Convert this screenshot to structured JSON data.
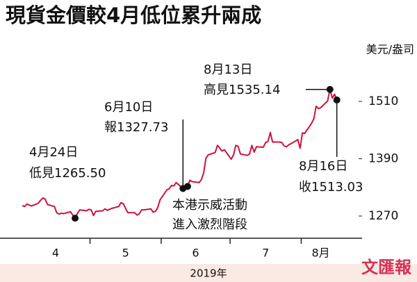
{
  "chart_data": {
    "type": "line",
    "title": "現貨金價較4月低位累升兩成",
    "y_unit": "美元/盎司",
    "x_label": "2019年",
    "watermark": "文匯報",
    "xlim": [
      -9.7,
      148
    ],
    "xticks": [
      {
        "value": 14.5,
        "label": "4"
      },
      {
        "value": 45,
        "label": "5"
      },
      {
        "value": 75.5,
        "label": "6"
      },
      {
        "value": 106,
        "label": "7"
      },
      {
        "value": 130,
        "label": "8月"
      }
    ],
    "month_bounds": [
      29.5,
      60.5,
      90.5,
      121.5
    ],
    "ylim": [
      1223.5,
      1632.2
    ],
    "yticks": [
      1270,
      1390,
      1510
    ],
    "series": [
      {
        "name": "現貨金價",
        "color": "#d0103a",
        "x": [
          0,
          1,
          2,
          3,
          4,
          7,
          8,
          9,
          10,
          11,
          14,
          15,
          16,
          17,
          18,
          21,
          22,
          23,
          24,
          25,
          28,
          29,
          30,
          31,
          32,
          35,
          36,
          37,
          38,
          39,
          42,
          43,
          44,
          45,
          46,
          49,
          50,
          51,
          52,
          53,
          56,
          57,
          58,
          59,
          60,
          63,
          64,
          65,
          66,
          67,
          70,
          71,
          72,
          73,
          74,
          77,
          78,
          79,
          80,
          81,
          84,
          85,
          86,
          87,
          88,
          91,
          92,
          93,
          94,
          95,
          98,
          99,
          100,
          101,
          102,
          105,
          106,
          107,
          108,
          109,
          112,
          113,
          114,
          115,
          116,
          119,
          120,
          121,
          122,
          123,
          126,
          127,
          128,
          129,
          130,
          133,
          134,
          135,
          136,
          137
        ],
        "values": [
          1292,
          1290,
          1295,
          1293,
          1291,
          1297,
          1303,
          1308,
          1305,
          1294,
          1290,
          1277,
          1274,
          1276,
          1275,
          1279,
          1272,
          1265.5,
          1275,
          1283,
          1281,
          1284,
          1283,
          1271,
          1280,
          1281,
          1285,
          1282,
          1284,
          1286,
          1290,
          1298,
          1296,
          1286,
          1277,
          1277,
          1272,
          1275,
          1283,
          1283,
          1285,
          1278,
          1280,
          1288,
          1304,
          1325,
          1327,
          1334,
          1333,
          1340,
          1327.73,
          1327,
          1332,
          1345,
          1342,
          1340,
          1346,
          1360,
          1391,
          1398,
          1403,
          1418,
          1412,
          1406,
          1409,
          1389,
          1398,
          1418,
          1416,
          1400,
          1397,
          1400,
          1418,
          1404,
          1415,
          1414,
          1424,
          1426,
          1445,
          1425,
          1425,
          1424,
          1417,
          1415,
          1419,
          1427,
          1430,
          1412,
          1444,
          1443,
          1464,
          1474,
          1500,
          1495,
          1497,
          1511,
          1535.14,
          1517,
          1525,
          1513.03
        ]
      }
    ],
    "annotations": [
      {
        "lines": [
          "4月24日",
          "低見1265.50"
        ],
        "x": 23,
        "value": 1265.5
      },
      {
        "lines": [
          "6月10日",
          "報1327.73"
        ],
        "x": 70,
        "value": 1327.73
      },
      {
        "lines": [
          "本港示威活動",
          "進入激烈階段"
        ],
        "x": 72,
        "value": 1332
      },
      {
        "lines": [
          "8月13日",
          "高見1535.14"
        ],
        "x": 134,
        "value": 1535.14
      },
      {
        "lines": [
          "8月16日",
          "收1513.03"
        ],
        "x": 137,
        "value": 1513.03
      }
    ]
  }
}
